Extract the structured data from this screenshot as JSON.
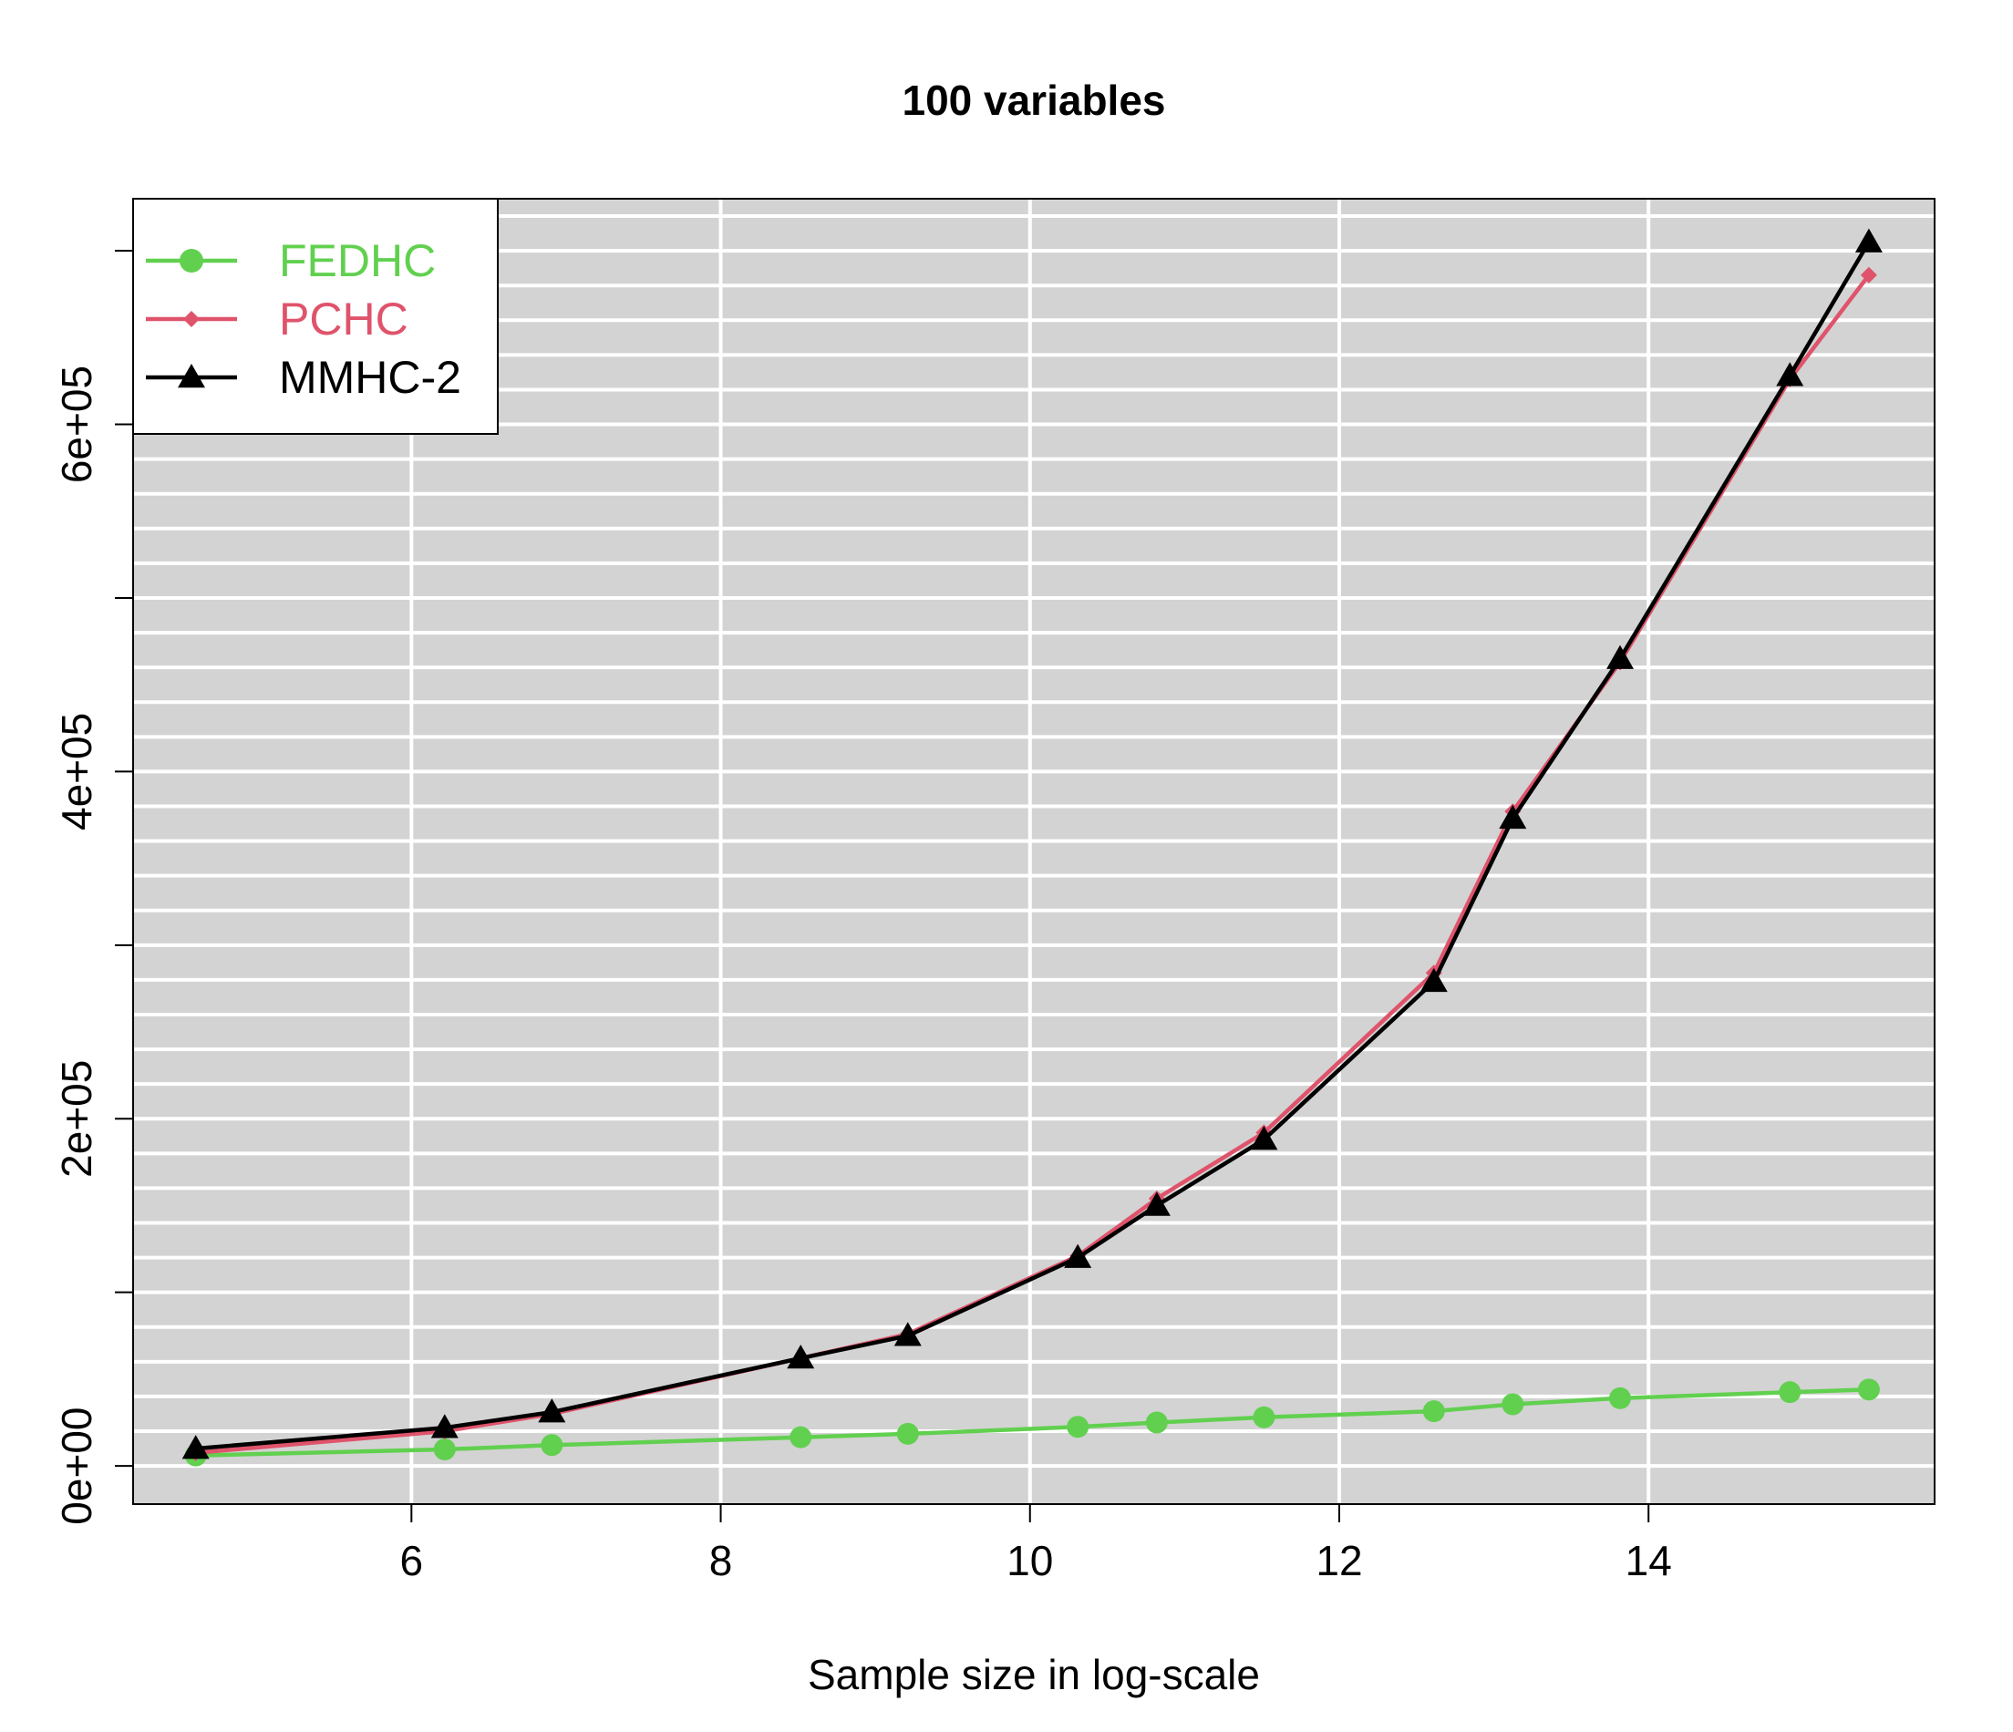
{
  "chart_data": {
    "type": "line",
    "title": "100 variables",
    "xlabel": "Sample size in log-scale",
    "ylabel": "",
    "xlim": [
      4.2,
      15.85
    ],
    "ylim": [
      -22000,
      730000
    ],
    "x_ticks": [
      6,
      8,
      10,
      12,
      14
    ],
    "x_tick_labels": [
      "6",
      "8",
      "10",
      "12",
      "14"
    ],
    "y_ticks": [
      0,
      100000,
      200000,
      300000,
      400000,
      500000,
      600000,
      700000
    ],
    "y_tick_labels": [
      "0e+00",
      "",
      "2e+05",
      "",
      "4e+05",
      "",
      "6e+05",
      ""
    ],
    "grid": true,
    "grid_y_step": 20000,
    "background_color": "#d3d3d3",
    "legend_position": "top-left",
    "x": [
      4.605,
      6.215,
      6.908,
      8.517,
      9.21,
      10.309,
      10.82,
      11.513,
      12.612,
      13.122,
      13.816,
      14.914,
      15.425
    ],
    "series": [
      {
        "name": "FEDHC",
        "color": "#61d04f",
        "marker": "circle",
        "values": [
          6000,
          9500,
          12000,
          16500,
          18500,
          22500,
          25000,
          28000,
          31500,
          35500,
          39000,
          42500,
          44000
        ]
      },
      {
        "name": "PCHC",
        "color": "#df536b",
        "marker": "diamond",
        "values": [
          7500,
          20000,
          30000,
          62000,
          76000,
          121000,
          154000,
          192000,
          284000,
          377000,
          463000,
          626000,
          686000
        ]
      },
      {
        "name": "MMHC-2",
        "color": "#000000",
        "marker": "triangle",
        "values": [
          10000,
          22000,
          31000,
          62000,
          75000,
          120000,
          150000,
          188000,
          279000,
          373000,
          465000,
          628000,
          705000
        ]
      }
    ]
  }
}
